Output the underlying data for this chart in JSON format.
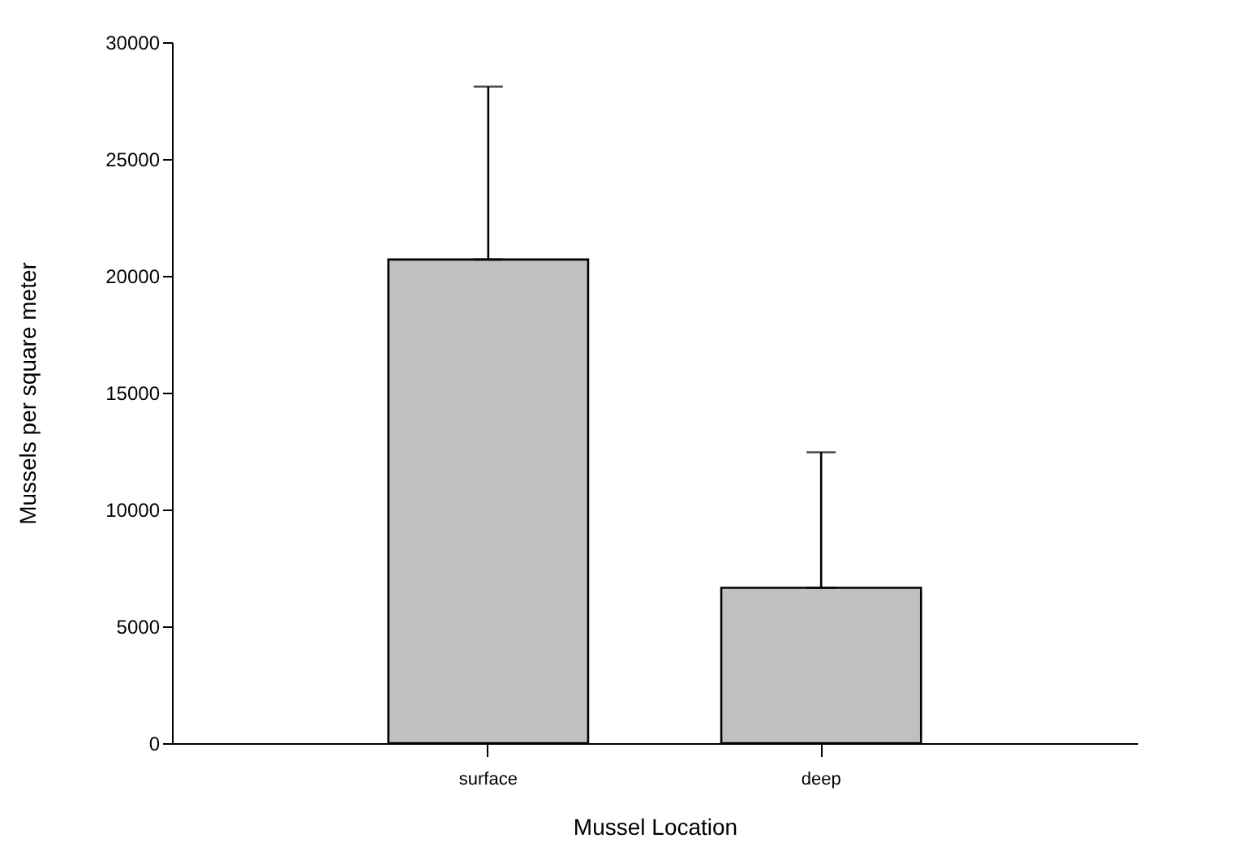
{
  "chart_data": {
    "type": "bar",
    "xlabel": "Mussel Location",
    "ylabel": "Mussels per square meter",
    "categories": [
      "surface",
      "deep"
    ],
    "values": [
      20700,
      6650
    ],
    "errors": [
      [
        20700,
        28100
      ],
      [
        6650,
        12450
      ]
    ],
    "color": "#c0c0c0",
    "ylim": [
      0,
      30000
    ],
    "yticks": [
      0,
      5000,
      10000,
      15000,
      20000,
      25000,
      30000
    ],
    "grid": false
  }
}
